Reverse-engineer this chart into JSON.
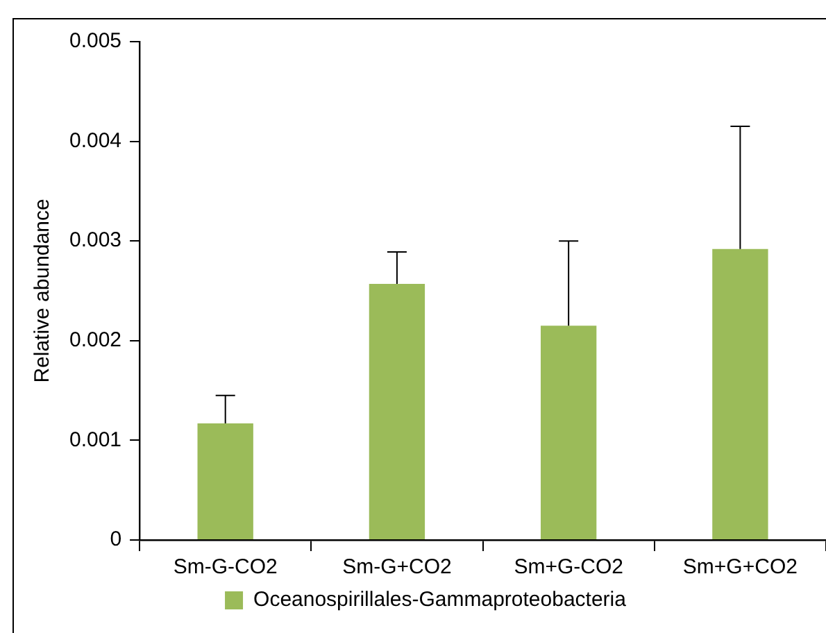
{
  "chart_data": {
    "type": "bar",
    "ylabel": "Relative abundance",
    "categories": [
      "Sm-G-CO2",
      "Sm-G+CO2",
      "Sm+G-CO2",
      "Sm+G+CO2"
    ],
    "series": [
      {
        "name": "Oceanospirillales-Gammaproteobacteria",
        "color": "#9bbb59",
        "values": [
          0.00117,
          0.00257,
          0.00215,
          0.00292
        ],
        "errors": [
          [
            0.00117,
            0.00145
          ],
          [
            0.00257,
            0.00289
          ],
          [
            0.00215,
            0.003
          ],
          [
            0.00292,
            0.00415
          ]
        ]
      }
    ],
    "ylim": [
      0,
      0.005
    ],
    "yticks": [
      0,
      0.001,
      0.002,
      0.003,
      0.004,
      0.005
    ],
    "grid": false,
    "legend": "bottom"
  }
}
